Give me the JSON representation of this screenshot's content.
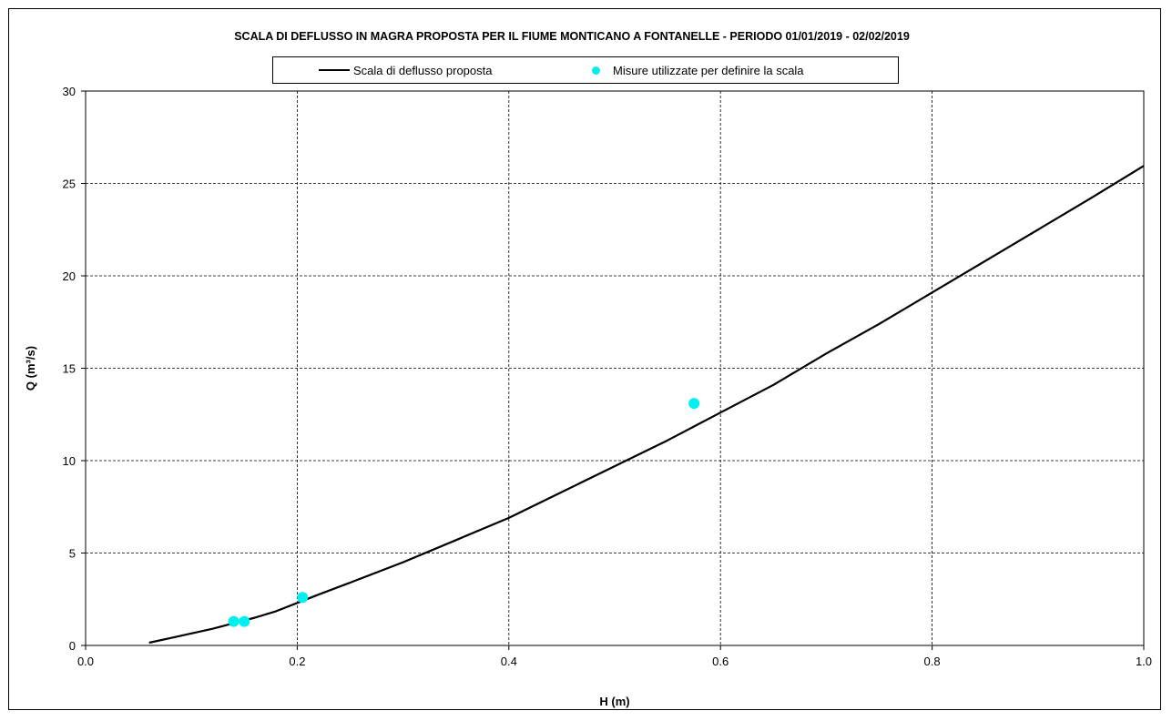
{
  "chart_data": {
    "type": "line",
    "title": "SCALA DI DEFLUSSO IN MAGRA PROPOSTA PER IL FIUME MONTICANO A FONTANELLE - PERIODO 01/01/2019 - 02/02/2019",
    "xlabel": "H (m)",
    "ylabel": "Q (m³/s)",
    "xlim": [
      0.0,
      1.0
    ],
    "ylim": [
      0,
      30
    ],
    "xticks": [
      "0.0",
      "0.2",
      "0.4",
      "0.6",
      "0.8",
      "1.0"
    ],
    "yticks": [
      "0",
      "5",
      "10",
      "15",
      "20",
      "25",
      "30"
    ],
    "grid": true,
    "legend_position": "top",
    "series": [
      {
        "name": "Scala di deflusso proposta",
        "kind": "line",
        "color": "#000000",
        "points": [
          [
            0.06,
            0.15
          ],
          [
            0.08,
            0.4
          ],
          [
            0.1,
            0.65
          ],
          [
            0.12,
            0.9
          ],
          [
            0.14,
            1.2
          ],
          [
            0.16,
            1.5
          ],
          [
            0.18,
            1.85
          ],
          [
            0.2,
            2.3
          ],
          [
            0.22,
            2.75
          ],
          [
            0.25,
            3.4
          ],
          [
            0.3,
            4.5
          ],
          [
            0.35,
            5.7
          ],
          [
            0.4,
            6.9
          ],
          [
            0.45,
            8.3
          ],
          [
            0.5,
            9.7
          ],
          [
            0.55,
            11.1
          ],
          [
            0.6,
            12.6
          ],
          [
            0.65,
            14.1
          ],
          [
            0.7,
            15.8
          ],
          [
            0.75,
            17.4
          ],
          [
            0.8,
            19.1
          ],
          [
            0.85,
            20.8
          ],
          [
            0.9,
            22.5
          ],
          [
            0.95,
            24.2
          ],
          [
            1.0,
            25.95
          ]
        ]
      },
      {
        "name": "Misure utilizzate per definire la scala",
        "kind": "scatter",
        "color": "#00f0f0",
        "points": [
          [
            0.14,
            1.3
          ],
          [
            0.15,
            1.3
          ],
          [
            0.205,
            2.6
          ],
          [
            0.575,
            13.1
          ]
        ]
      }
    ]
  }
}
